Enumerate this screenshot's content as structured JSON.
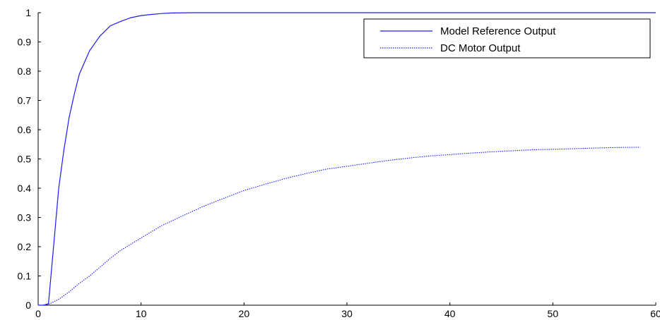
{
  "chart_data": {
    "type": "line",
    "xlim": [
      0,
      60
    ],
    "ylim": [
      0,
      1
    ],
    "xticks": [
      "0",
      "10",
      "20",
      "30",
      "40",
      "50",
      "60"
    ],
    "yticks": [
      "0",
      "0.1",
      "0.2",
      "0.3",
      "0.4",
      "0.5",
      "0.6",
      "0.7",
      "0.8",
      "0.9",
      "1"
    ],
    "grid": false,
    "legend_position": "top-right",
    "series": [
      {
        "name": "Model Reference Output",
        "line_style": "solid",
        "color": "#1a1aff",
        "x": [
          0,
          0.5,
          1,
          1.5,
          2,
          2.5,
          3,
          3.5,
          4,
          5,
          6,
          7,
          8,
          9,
          10,
          11,
          12,
          13,
          15,
          20,
          30,
          40,
          50,
          60
        ],
        "y": [
          0,
          0,
          0.005,
          0.2,
          0.4,
          0.53,
          0.64,
          0.72,
          0.79,
          0.87,
          0.92,
          0.955,
          0.97,
          0.983,
          0.99,
          0.994,
          0.997,
          0.999,
          1,
          1,
          1,
          1,
          1,
          1
        ]
      },
      {
        "name": "DC Motor Output",
        "line_style": "dotted",
        "color": "#1a1aff",
        "x": [
          0,
          0.5,
          1,
          2,
          3,
          4,
          5,
          6,
          7,
          8,
          10,
          12,
          14,
          16,
          18,
          20,
          22,
          24,
          26,
          28,
          30,
          32,
          34,
          36,
          38,
          40,
          42,
          44,
          46,
          48,
          50,
          52,
          54,
          56,
          58.5
        ],
        "y": [
          0,
          0,
          0.003,
          0.02,
          0.045,
          0.075,
          0.1,
          0.13,
          0.16,
          0.187,
          0.23,
          0.272,
          0.305,
          0.337,
          0.365,
          0.392,
          0.413,
          0.433,
          0.45,
          0.465,
          0.475,
          0.485,
          0.495,
          0.503,
          0.51,
          0.515,
          0.52,
          0.524,
          0.528,
          0.531,
          0.533,
          0.535,
          0.537,
          0.539,
          0.54
        ]
      }
    ]
  }
}
